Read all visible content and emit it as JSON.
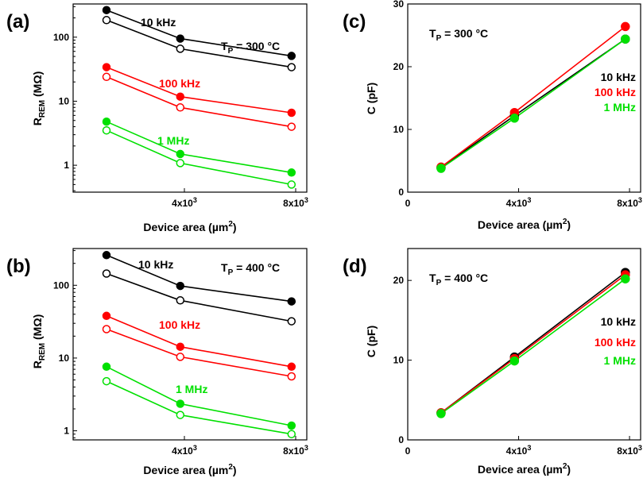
{
  "figure": {
    "panel_labels": [
      "(a)",
      "(b)",
      "(c)",
      "(d)"
    ],
    "colors": {
      "black": "#000000",
      "red": "#ff0000",
      "green": "#00e000"
    }
  },
  "chart_data": [
    {
      "id": "a",
      "type": "line",
      "yscale": "log",
      "xlabel": {
        "main": "Device area (µm",
        "sup": "2",
        "end": ")"
      },
      "ylabel": {
        "main": "R",
        "sub": "REM",
        "end": " (MΩ)"
      },
      "x_ticks": [
        {
          "value": 4000,
          "base": "4x10",
          "exp": "3"
        },
        {
          "value": 8000,
          "base": "8x10",
          "exp": "3"
        }
      ],
      "y_ticks": [
        {
          "value": 1,
          "label": "1"
        },
        {
          "value": 10,
          "label": "10"
        },
        {
          "value": 100,
          "label": "100"
        }
      ],
      "xlim": [
        0,
        8400
      ],
      "ylim": [
        0.38,
        330
      ],
      "annotation": {
        "main": "T",
        "sub": "P",
        "end": " = 300 °C"
      },
      "series": [
        {
          "name": "10 kHz filled",
          "color": "#000000",
          "filled": true,
          "x": [
            1200,
            3850,
            7850
          ],
          "y": [
            265,
            95,
            51
          ]
        },
        {
          "name": "10 kHz open",
          "color": "#000000",
          "filled": false,
          "x": [
            1200,
            3850,
            7850
          ],
          "y": [
            185,
            66,
            34
          ]
        },
        {
          "name": "100 kHz filled",
          "color": "#ff0000",
          "filled": true,
          "x": [
            1200,
            3850,
            7850
          ],
          "y": [
            34,
            11.8,
            6.6
          ]
        },
        {
          "name": "100 kHz open",
          "color": "#ff0000",
          "filled": false,
          "x": [
            1200,
            3850,
            7850
          ],
          "y": [
            24,
            8,
            4
          ]
        },
        {
          "name": "1 MHz filled",
          "color": "#00e000",
          "filled": true,
          "x": [
            1200,
            3850,
            7850
          ],
          "y": [
            4.8,
            1.5,
            0.77
          ]
        },
        {
          "name": "1 MHz open",
          "color": "#00e000",
          "filled": false,
          "x": [
            1200,
            3850,
            7850
          ],
          "y": [
            3.5,
            1.08,
            0.5
          ]
        }
      ],
      "series_labels": [
        {
          "text": "10 kHz",
          "color": "#000000"
        },
        {
          "text": "100 kHz",
          "color": "#ff0000"
        },
        {
          "text": "1 MHz",
          "color": "#00e000"
        }
      ]
    },
    {
      "id": "b",
      "type": "line",
      "yscale": "log",
      "xlabel": {
        "main": "Device area (µm",
        "sup": "2",
        "end": ")"
      },
      "ylabel": {
        "main": "R",
        "sub": "REM",
        "end": " (MΩ)"
      },
      "x_ticks": [
        {
          "value": 4000,
          "base": "4x10",
          "exp": "3"
        },
        {
          "value": 8000,
          "base": "8x10",
          "exp": "3"
        }
      ],
      "y_ticks": [
        {
          "value": 1,
          "label": "1"
        },
        {
          "value": 10,
          "label": "10"
        },
        {
          "value": 100,
          "label": "100"
        }
      ],
      "xlim": [
        0,
        8400
      ],
      "ylim": [
        0.75,
        320
      ],
      "annotation": {
        "main": "T",
        "sub": "P",
        "end": " = 400 °C"
      },
      "series": [
        {
          "name": "10 kHz filled",
          "color": "#000000",
          "filled": true,
          "x": [
            1200,
            3850,
            7850
          ],
          "y": [
            260,
            98,
            60
          ]
        },
        {
          "name": "10 kHz open",
          "color": "#000000",
          "filled": false,
          "x": [
            1200,
            3850,
            7850
          ],
          "y": [
            145,
            62,
            32
          ]
        },
        {
          "name": "100 kHz filled",
          "color": "#ff0000",
          "filled": true,
          "x": [
            1200,
            3850,
            7850
          ],
          "y": [
            38,
            14.3,
            7.6
          ]
        },
        {
          "name": "100 kHz open",
          "color": "#ff0000",
          "filled": false,
          "x": [
            1200,
            3850,
            7850
          ],
          "y": [
            25,
            10.4,
            5.6
          ]
        },
        {
          "name": "1 MHz filled",
          "color": "#00e000",
          "filled": true,
          "x": [
            1200,
            3850,
            7850
          ],
          "y": [
            7.6,
            2.35,
            1.18
          ]
        },
        {
          "name": "1 MHz open",
          "color": "#00e000",
          "filled": false,
          "x": [
            1200,
            3850,
            7850
          ],
          "y": [
            4.8,
            1.65,
            0.9
          ]
        }
      ],
      "series_labels": [
        {
          "text": "10 kHz",
          "color": "#000000"
        },
        {
          "text": "100 kHz",
          "color": "#ff0000"
        },
        {
          "text": "1 MHz",
          "color": "#00e000"
        }
      ]
    },
    {
      "id": "c",
      "type": "line",
      "yscale": "linear",
      "xlabel": {
        "main": "Device area (µm",
        "sup": "2",
        "end": ")"
      },
      "ylabel": {
        "main": "C (pF)",
        "sub": "",
        "end": ""
      },
      "x_ticks": [
        {
          "value": 0,
          "base": "0",
          "exp": ""
        },
        {
          "value": 4000,
          "base": "4x10",
          "exp": "3"
        },
        {
          "value": 8000,
          "base": "8x10",
          "exp": "3"
        }
      ],
      "y_ticks": [
        {
          "value": 0,
          "label": "0"
        },
        {
          "value": 10,
          "label": "10"
        },
        {
          "value": 20,
          "label": "20"
        },
        {
          "value": 30,
          "label": "30"
        }
      ],
      "xlim": [
        0,
        8400
      ],
      "ylim": [
        0,
        30
      ],
      "annotation": {
        "main": "T",
        "sub": "P",
        "end": " = 300 °C"
      },
      "series": [
        {
          "name": "10 kHz",
          "color": "#000000",
          "filled": true,
          "x": [
            1200,
            3850,
            7850
          ],
          "y": [
            3.9,
            12.2,
            24.4
          ]
        },
        {
          "name": "100 kHz",
          "color": "#ff0000",
          "filled": true,
          "x": [
            1200,
            3850,
            7850
          ],
          "y": [
            4.0,
            12.7,
            26.4
          ]
        },
        {
          "name": "1 MHz",
          "color": "#00e000",
          "filled": true,
          "x": [
            1200,
            3850,
            7850
          ],
          "y": [
            3.8,
            11.8,
            24.4
          ]
        }
      ],
      "series_labels": [
        {
          "text": "10 kHz",
          "color": "#000000"
        },
        {
          "text": "100 kHz",
          "color": "#ff0000"
        },
        {
          "text": "1 MHz",
          "color": "#00e000"
        }
      ]
    },
    {
      "id": "d",
      "type": "line",
      "yscale": "linear",
      "xlabel": {
        "main": "Device area (µm",
        "sup": "2",
        "end": ")"
      },
      "ylabel": {
        "main": "C (pF)",
        "sub": "",
        "end": ""
      },
      "x_ticks": [
        {
          "value": 0,
          "base": "0",
          "exp": ""
        },
        {
          "value": 4000,
          "base": "4x10",
          "exp": "3"
        },
        {
          "value": 8000,
          "base": "8x10",
          "exp": "3"
        }
      ],
      "y_ticks": [
        {
          "value": 0,
          "label": "0"
        },
        {
          "value": 10,
          "label": "10"
        },
        {
          "value": 20,
          "label": "20"
        }
      ],
      "xlim": [
        0,
        8400
      ],
      "ylim": [
        0,
        24
      ],
      "annotation": {
        "main": "T",
        "sub": "P",
        "end": " = 400 °C"
      },
      "series": [
        {
          "name": "10 kHz",
          "color": "#000000",
          "filled": true,
          "x": [
            1200,
            3850,
            7850
          ],
          "y": [
            3.4,
            10.4,
            21.0
          ]
        },
        {
          "name": "100 kHz",
          "color": "#ff0000",
          "filled": true,
          "x": [
            1200,
            3850,
            7850
          ],
          "y": [
            3.4,
            10.2,
            20.7
          ]
        },
        {
          "name": "1 MHz",
          "color": "#00e000",
          "filled": true,
          "x": [
            1200,
            3850,
            7850
          ],
          "y": [
            3.3,
            9.9,
            20.2
          ]
        }
      ],
      "series_labels": [
        {
          "text": "10 kHz",
          "color": "#000000"
        },
        {
          "text": "100 kHz",
          "color": "#ff0000"
        },
        {
          "text": "1 MHz",
          "color": "#00e000"
        }
      ]
    }
  ]
}
